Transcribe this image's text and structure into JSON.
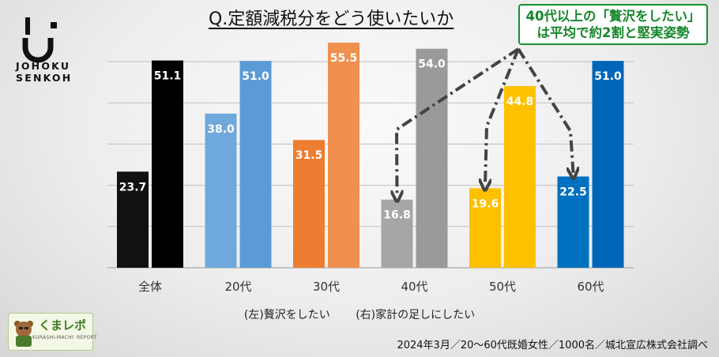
{
  "logo": {
    "line1": "JOHOKU",
    "line2": "SENKOH"
  },
  "callout": {
    "line1": "40代以上の「贅沢をしたい」",
    "line2": "は平均で約2割と堅実姿勢"
  },
  "legend": {
    "left": "(左)贅沢をしたい",
    "right": "(右)家計の足しにしたい"
  },
  "badge": {
    "name": "くまレポ",
    "sub": "KURASHI-MACHI' REPORT"
  },
  "footer": "2024年3月／20～60代既婚女性／1000名／城北宣広株式会社調べ",
  "chart_data": {
    "type": "bar",
    "title": "Q.定額減税分をどう使いたいか",
    "categories": [
      "全体",
      "20代",
      "30代",
      "40代",
      "50代",
      "60代"
    ],
    "series": [
      {
        "name": "(左)贅沢をしたい",
        "values": [
          23.7,
          38.0,
          31.5,
          16.8,
          19.6,
          22.5
        ]
      },
      {
        "name": "(右)家計の足しにしたい",
        "values": [
          51.1,
          51.0,
          55.5,
          54.0,
          44.8,
          51.0
        ]
      }
    ],
    "colors": [
      [
        "#111111",
        "#000000"
      ],
      [
        "#6fa8dc",
        "#5b9bd5"
      ],
      [
        "#ed7d31",
        "#f0904e"
      ],
      [
        "#a6a6a6",
        "#9a9a9a"
      ],
      [
        "#ffc000",
        "#ffc000"
      ],
      [
        "#0070c0",
        "#0066b8"
      ]
    ],
    "ylim": [
      0,
      55.5
    ],
    "grid": true,
    "annotation": "dash-dot arrows from callout to 40代, 50代 and 60代 left bars"
  }
}
